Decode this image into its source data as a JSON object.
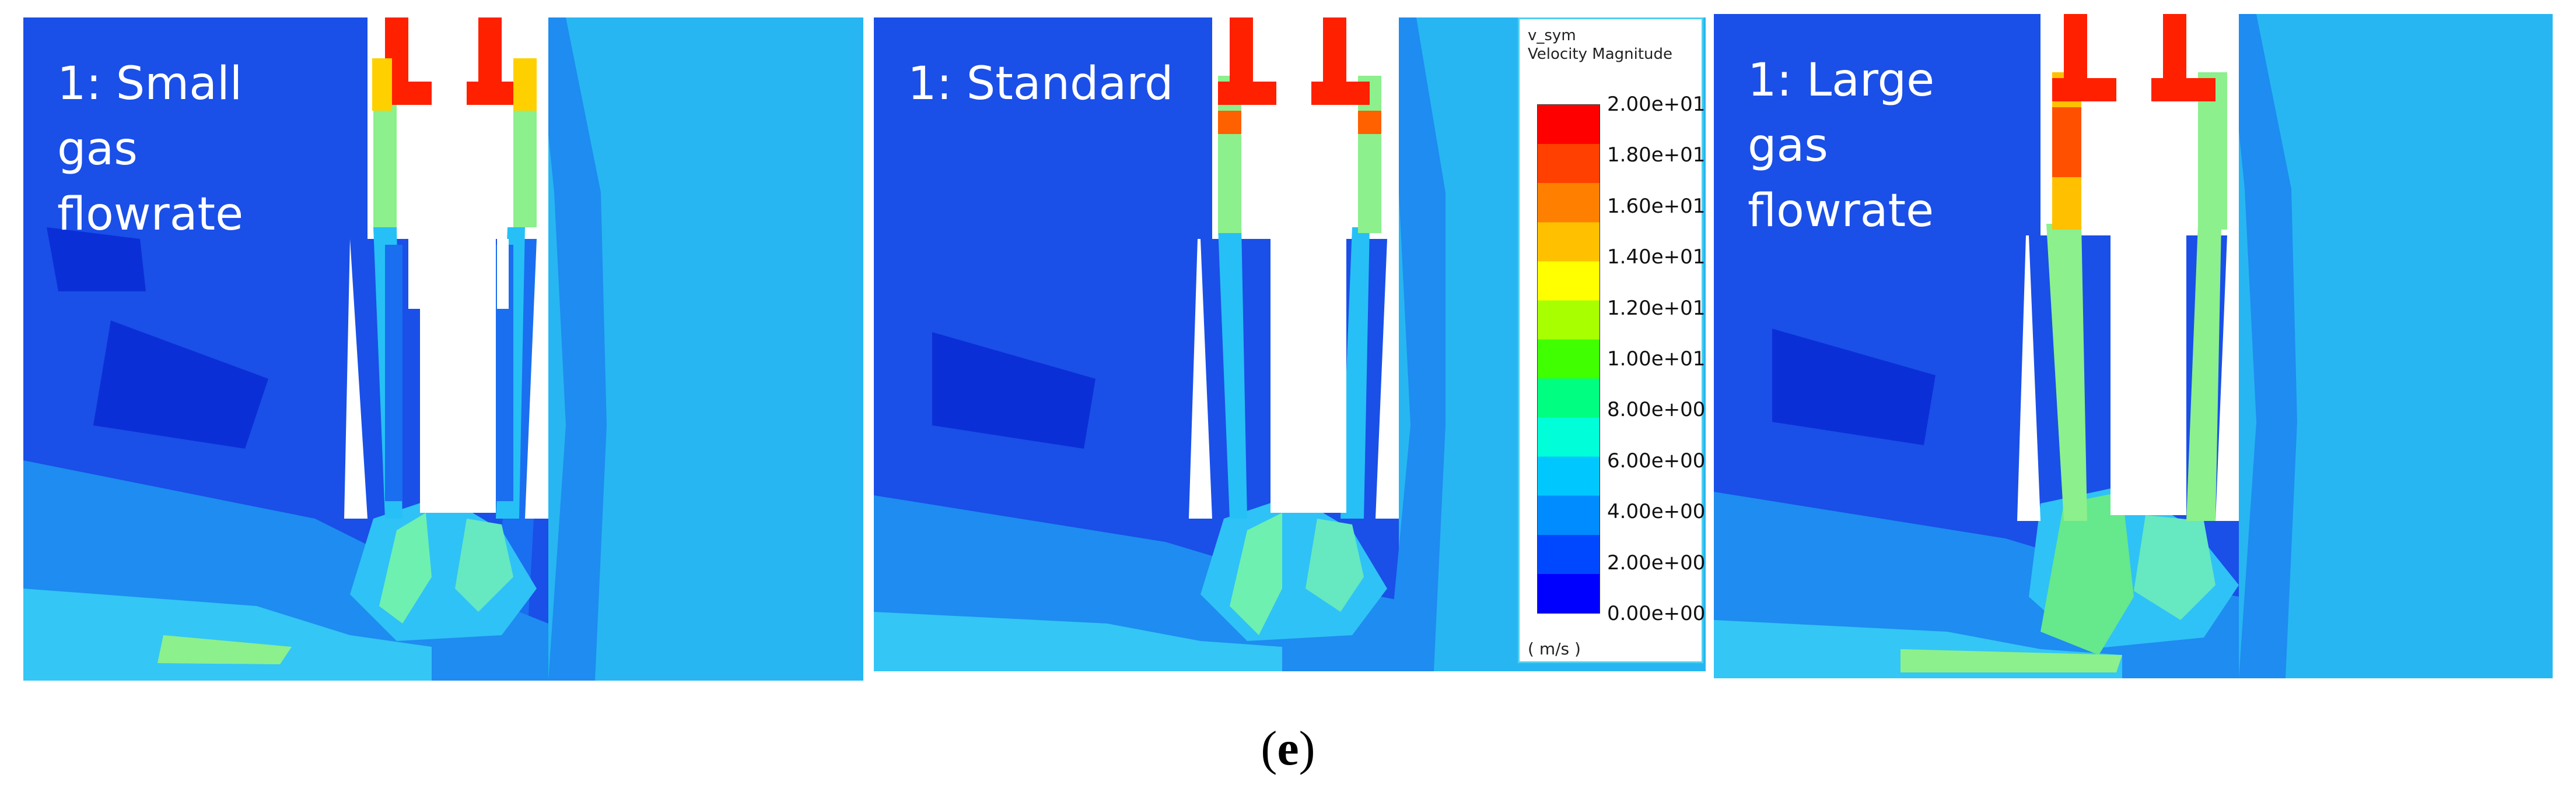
{
  "panels": [
    {
      "label": "1: Small\ngas\nflowrate",
      "variant": "small"
    },
    {
      "label": "1: Standard",
      "variant": "standard"
    },
    {
      "label": "1: Large\ngas\nflowrate",
      "variant": "large"
    }
  ],
  "legend": {
    "title_line1": "v_sym",
    "title_line2": "Velocity Magnitude",
    "ticks": [
      "2.00e+01",
      "1.80e+01",
      "1.60e+01",
      "1.40e+01",
      "1.20e+01",
      "1.00e+01",
      "8.00e+00",
      "6.00e+00",
      "4.00e+00",
      "2.00e+00",
      "0.00e+00"
    ],
    "unit": "( m/s )",
    "colors": [
      "#0000ff",
      "#0048ff",
      "#008cff",
      "#00c8ff",
      "#00ffd8",
      "#00ff80",
      "#40ff00",
      "#a8ff00",
      "#ffff00",
      "#ffc000",
      "#ff8000",
      "#ff4000",
      "#ff0000"
    ]
  },
  "caption": {
    "open": "(",
    "letter": "e",
    "close": ")"
  }
}
